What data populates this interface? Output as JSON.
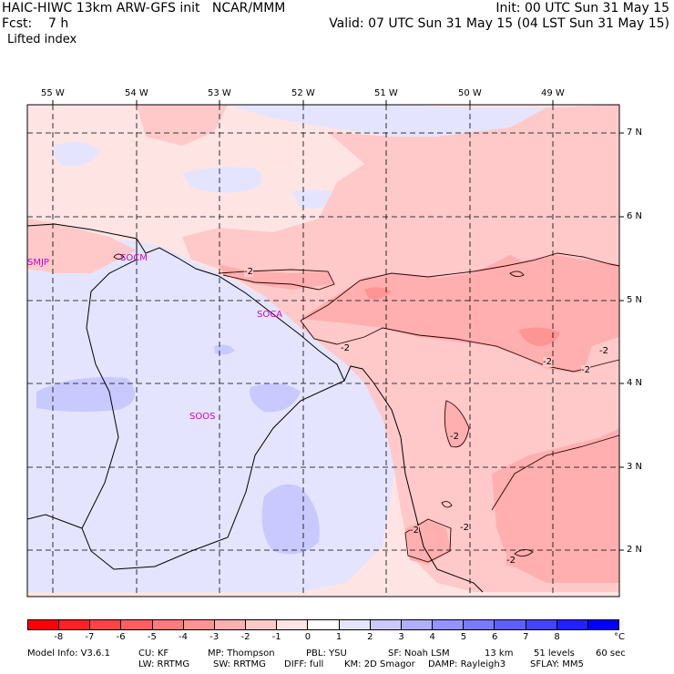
{
  "header": {
    "model_line": "HAIC-HIWC 13km ARW-GFS init   NCAR/MMM",
    "forecast_line": "Fcst:    7 h",
    "field_name": "Lifted index",
    "init_line": "Init: 00 UTC Sun 31 May 15",
    "valid_line": "Valid: 07 UTC Sun 31 May 15 (04 LST Sun 31 May 15)"
  },
  "map": {
    "lon_labels": [
      "55 W",
      "54 W",
      "53 W",
      "52 W",
      "51 W",
      "50 W",
      "49 W"
    ],
    "lat_labels": [
      "7 N",
      "6 N",
      "5 N",
      "4 N",
      "3 N",
      "2 N"
    ],
    "stations": [
      "SMJP",
      "SOCM",
      "SOCA",
      "SOOS"
    ],
    "contour_labels": [
      "-2",
      "-2",
      "-2",
      "-2",
      "-2",
      "-2",
      "-2",
      "-2",
      "-2"
    ]
  },
  "colorbar": {
    "colors": [
      "#ff0000",
      "#ff2222",
      "#ff4444",
      "#ff5f5f",
      "#ff7a7a",
      "#ff9494",
      "#ffafaf",
      "#ffc9c9",
      "#ffe4e4",
      "#ffffff",
      "#e4e4ff",
      "#c9c9ff",
      "#afafff",
      "#9494ff",
      "#7a7aff",
      "#5f5fff",
      "#4444ff",
      "#2222ff",
      "#0000ff"
    ],
    "tick_labels": [
      "-8",
      "-7",
      "-6",
      "-5",
      "-4",
      "-3",
      "-2",
      "-1",
      "0",
      "1",
      "2",
      "3",
      "4",
      "5",
      "6",
      "7",
      "8"
    ],
    "units": "°C"
  },
  "footer": {
    "line1": [
      "Model Info: V3.6.1",
      "CU: KF",
      "MP: Thompson",
      "PBL: YSU",
      "SF: Noah LSM",
      "13 km",
      "51 levels",
      "60 sec"
    ],
    "line2": [
      "LW: RRTMG",
      "SW: RRTMG",
      "DIFF: full",
      "KM: 2D Smagor",
      "DAMP: Rayleigh3",
      "SFLAY: MM5"
    ]
  }
}
